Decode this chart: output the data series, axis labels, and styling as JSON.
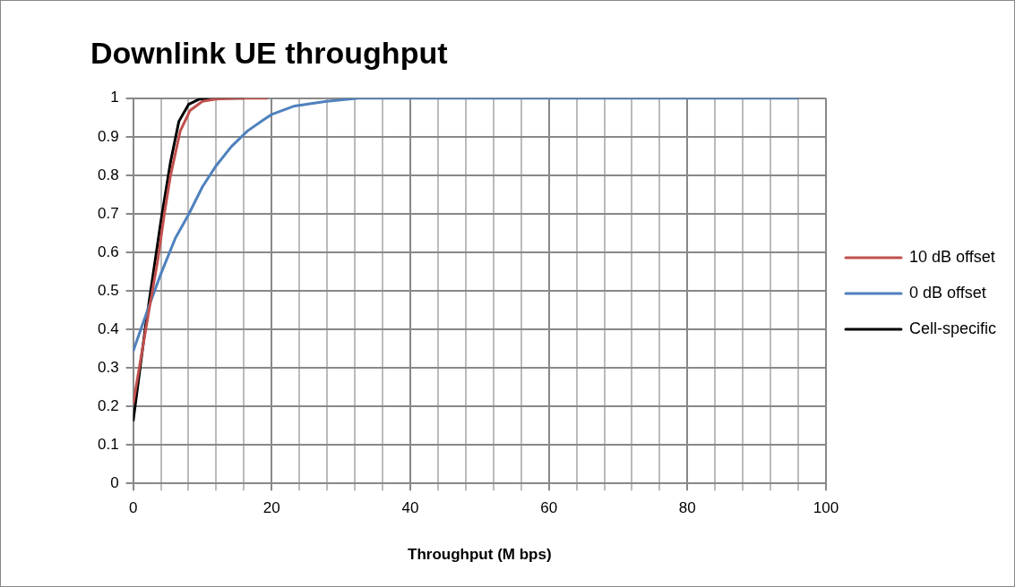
{
  "chart_data": {
    "type": "line",
    "title": "Downlink UE throughput",
    "xlabel": "Throughput (M bps)",
    "xlim": [
      0,
      100
    ],
    "xticks": [
      0,
      {
        "value": 4,
        "label": null
      },
      {
        "value": 8,
        "label": null
      },
      {
        "value": 12,
        "label": null
      },
      {
        "value": 16,
        "label": null
      },
      20,
      {
        "value": 24,
        "label": null
      },
      {
        "value": 28,
        "label": null
      },
      {
        "value": 32,
        "label": null
      },
      {
        "value": 36,
        "label": null
      },
      40,
      {
        "value": 44,
        "label": null
      },
      {
        "value": 48,
        "label": null
      },
      {
        "value": 52,
        "label": null
      },
      {
        "value": 56,
        "label": null
      },
      60,
      {
        "value": 64,
        "label": null
      },
      {
        "value": 68,
        "label": null
      },
      {
        "value": 72,
        "label": null
      },
      {
        "value": 76,
        "label": null
      },
      80,
      {
        "value": 84,
        "label": null
      },
      {
        "value": 88,
        "label": null
      },
      {
        "value": 92,
        "label": null
      },
      {
        "value": 96,
        "label": null
      },
      100
    ],
    "ylim": [
      0,
      1
    ],
    "yticks": [
      0,
      0.1,
      0.2,
      0.3,
      0.4,
      0.5,
      0.6,
      0.7,
      0.8,
      0.9,
      1
    ],
    "grid": true,
    "legend": "right",
    "marker": "none",
    "series": [
      {
        "name": "10 dB offset",
        "color": "#c0504d",
        "x": [
          0,
          2.2,
          3.6,
          4.5,
          5.4,
          6.8,
          8.2,
          10,
          11.9,
          15,
          19.4
        ],
        "values": [
          0.206,
          0.44,
          0.585,
          0.7,
          0.8,
          0.915,
          0.968,
          0.992,
          0.998,
          1,
          1
        ]
      },
      {
        "name": "0 dB offset",
        "color": "#4f81bd",
        "x": [
          0,
          2.2,
          4,
          6.1,
          8,
          10,
          11.9,
          14.2,
          16.5,
          18.8,
          20,
          23.3,
          27.9,
          32.5,
          50,
          70,
          96
        ],
        "values": [
          0.343,
          0.456,
          0.544,
          0.637,
          0.698,
          0.77,
          0.823,
          0.875,
          0.915,
          0.944,
          0.958,
          0.98,
          0.992,
          1,
          1,
          1,
          1
        ]
      },
      {
        "name": "Cell-specific",
        "color": "#000000",
        "x": [
          0,
          1.8,
          4,
          5.4,
          6.6,
          8,
          9.6,
          11.4,
          16
        ],
        "values": [
          0.161,
          0.41,
          0.68,
          0.835,
          0.94,
          0.984,
          0.998,
          1,
          1
        ]
      }
    ]
  }
}
